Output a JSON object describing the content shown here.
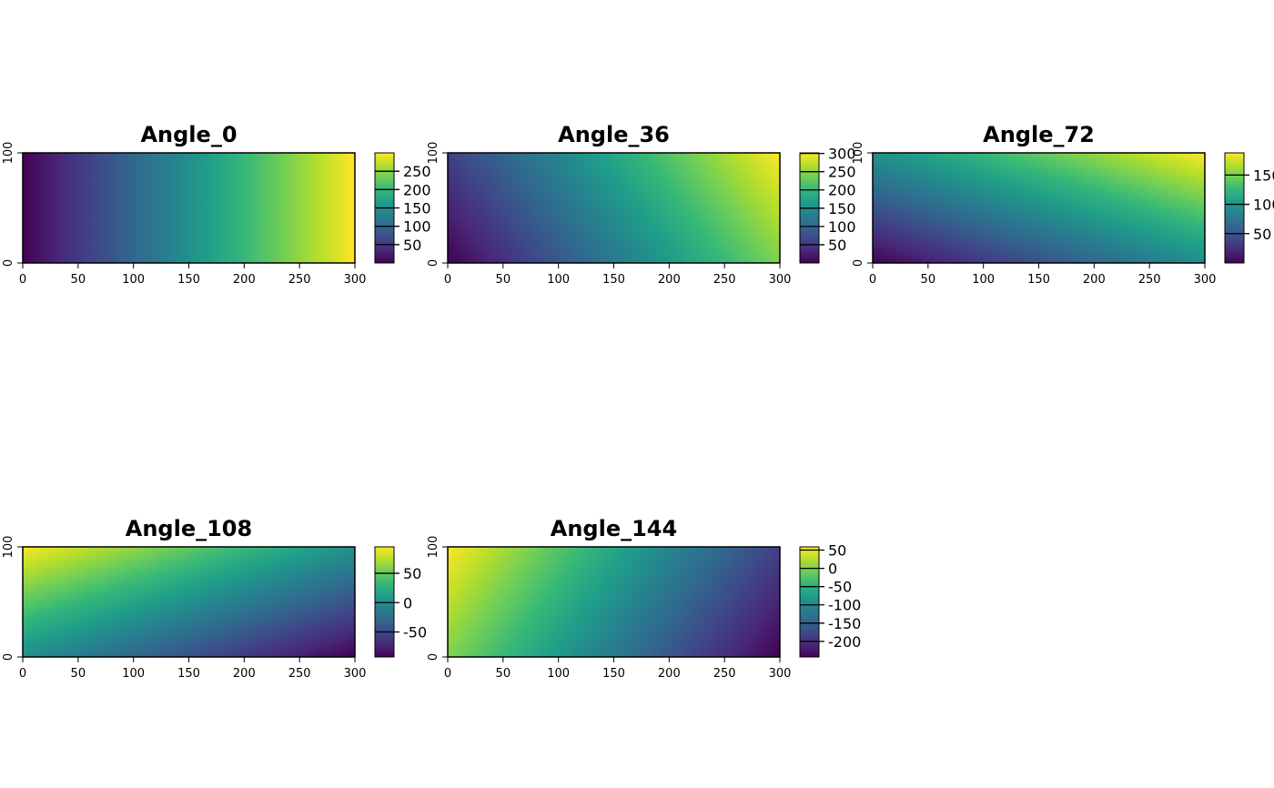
{
  "colormap": "viridis",
  "viridis_stops": [
    "#440154",
    "#482878",
    "#3e4989",
    "#31688e",
    "#26828e",
    "#1f9e89",
    "#35b779",
    "#6ece58",
    "#b5de2b",
    "#fde725"
  ],
  "chart_data": [
    {
      "type": "heatmap",
      "title": "Angle_0",
      "xlim": [
        0,
        300
      ],
      "ylim": [
        0,
        100
      ],
      "xticks": [
        "0",
        "50",
        "100",
        "150",
        "200",
        "250",
        "300"
      ],
      "yticks": [
        "0",
        "100"
      ],
      "value_range": [
        0,
        300
      ],
      "field": {
        "dir_x": 1,
        "dir_y": 0,
        "offset": 0
      },
      "legend_ticks": [
        50,
        100,
        150,
        200,
        250
      ],
      "legend_labels": [
        "50",
        "100",
        "150",
        "200",
        "250"
      ]
    },
    {
      "type": "heatmap",
      "title": "Angle_36",
      "xlim": [
        0,
        300
      ],
      "ylim": [
        0,
        100
      ],
      "xticks": [
        "0",
        "50",
        "100",
        "150",
        "200",
        "250",
        "300"
      ],
      "yticks": [
        "0",
        "100"
      ],
      "value_range": [
        0,
        301.5
      ],
      "field": {
        "dir_x": 0.809,
        "dir_y": 0.588,
        "offset": 0
      },
      "legend_ticks": [
        50,
        100,
        150,
        200,
        250,
        300
      ],
      "legend_labels": [
        "50",
        "100",
        "150",
        "200",
        "250",
        "300"
      ]
    },
    {
      "type": "heatmap",
      "title": "Angle_72",
      "xlim": [
        0,
        300
      ],
      "ylim": [
        0,
        100
      ],
      "xticks": [
        "0",
        "50",
        "100",
        "150",
        "200",
        "250",
        "300"
      ],
      "yticks": [
        "0",
        "100"
      ],
      "value_range": [
        0,
        187.8
      ],
      "field": {
        "dir_x": 0.309,
        "dir_y": 0.951,
        "offset": 0
      },
      "legend_ticks": [
        50,
        100,
        150
      ],
      "legend_labels": [
        "50",
        "100",
        "150"
      ]
    },
    {
      "type": "heatmap",
      "title": "Angle_108",
      "xlim": [
        0,
        300
      ],
      "ylim": [
        0,
        100
      ],
      "xticks": [
        "0",
        "50",
        "100",
        "150",
        "200",
        "250",
        "300"
      ],
      "yticks": [
        "0",
        "100"
      ],
      "value_range": [
        -92.7,
        95.1
      ],
      "field": {
        "dir_x": -0.309,
        "dir_y": 0.951,
        "offset": 0
      },
      "legend_ticks": [
        -50,
        0,
        50
      ],
      "legend_labels": [
        "-50",
        "0",
        "50"
      ]
    },
    {
      "type": "heatmap",
      "title": "Angle_144",
      "xlim": [
        0,
        300
      ],
      "ylim": [
        0,
        100
      ],
      "xticks": [
        "0",
        "50",
        "100",
        "150",
        "200",
        "250",
        "300"
      ],
      "yticks": [
        "0",
        "100"
      ],
      "value_range": [
        -242.7,
        58.8
      ],
      "field": {
        "dir_x": -0.809,
        "dir_y": 0.588,
        "offset": 0
      },
      "legend_ticks": [
        -200,
        -150,
        -100,
        -50,
        0,
        50
      ],
      "legend_labels": [
        "-200",
        "-150",
        "-100",
        "-50",
        "0",
        "50"
      ]
    }
  ]
}
